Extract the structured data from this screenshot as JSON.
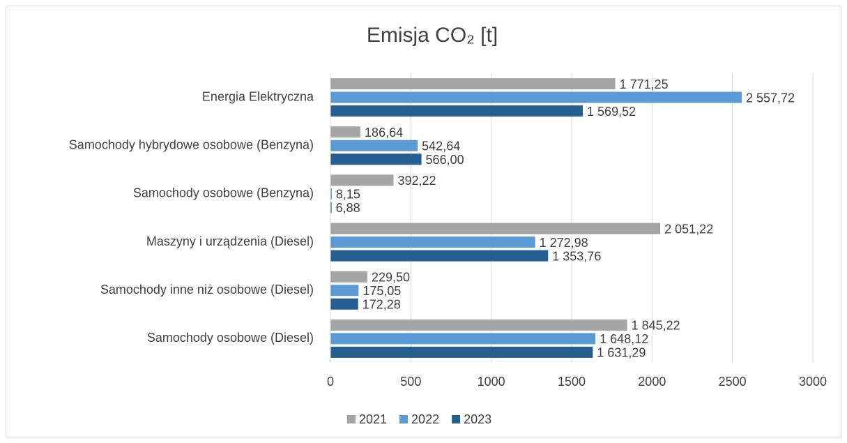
{
  "chart_data": {
    "type": "bar",
    "orientation": "horizontal",
    "title": "Emisja CO₂ [t]",
    "categories": [
      "Energia Elektryczna",
      "Samochody hybrydowe osobowe (Benzyna)",
      "Samochody osobowe (Benzyna)",
      "Maszyny i urządzenia (Diesel)",
      "Samochody inne niż osobowe (Diesel)",
      "Samochody osobowe (Diesel)"
    ],
    "series": [
      {
        "name": "2021",
        "color": "#a5a5a5",
        "values": [
          1771.25,
          186.64,
          392.22,
          2051.22,
          229.5,
          1845.22
        ],
        "value_labels": [
          "1 771,25",
          "186,64",
          "392,22",
          "2 051,22",
          "229,50",
          "1 845,22"
        ]
      },
      {
        "name": "2022",
        "color": "#5b9bd5",
        "values": [
          2557.72,
          542.64,
          8.15,
          1272.98,
          175.05,
          1648.12
        ],
        "value_labels": [
          "2 557,72",
          "542,64",
          "8,15",
          "1 272,98",
          "175,05",
          "1 648,12"
        ]
      },
      {
        "name": "2023",
        "color": "#255e91",
        "values": [
          1569.52,
          566.0,
          6.88,
          1353.76,
          172.28,
          1631.29
        ],
        "value_labels": [
          "1 569,52",
          "566,00",
          "6,88",
          "1 353,76",
          "172,28",
          "1 631,29"
        ]
      }
    ],
    "xlim": [
      0,
      3000
    ],
    "xticks": [
      0,
      500,
      1000,
      1500,
      2000,
      2500,
      3000
    ],
    "grid": true,
    "legend": "bottom"
  }
}
